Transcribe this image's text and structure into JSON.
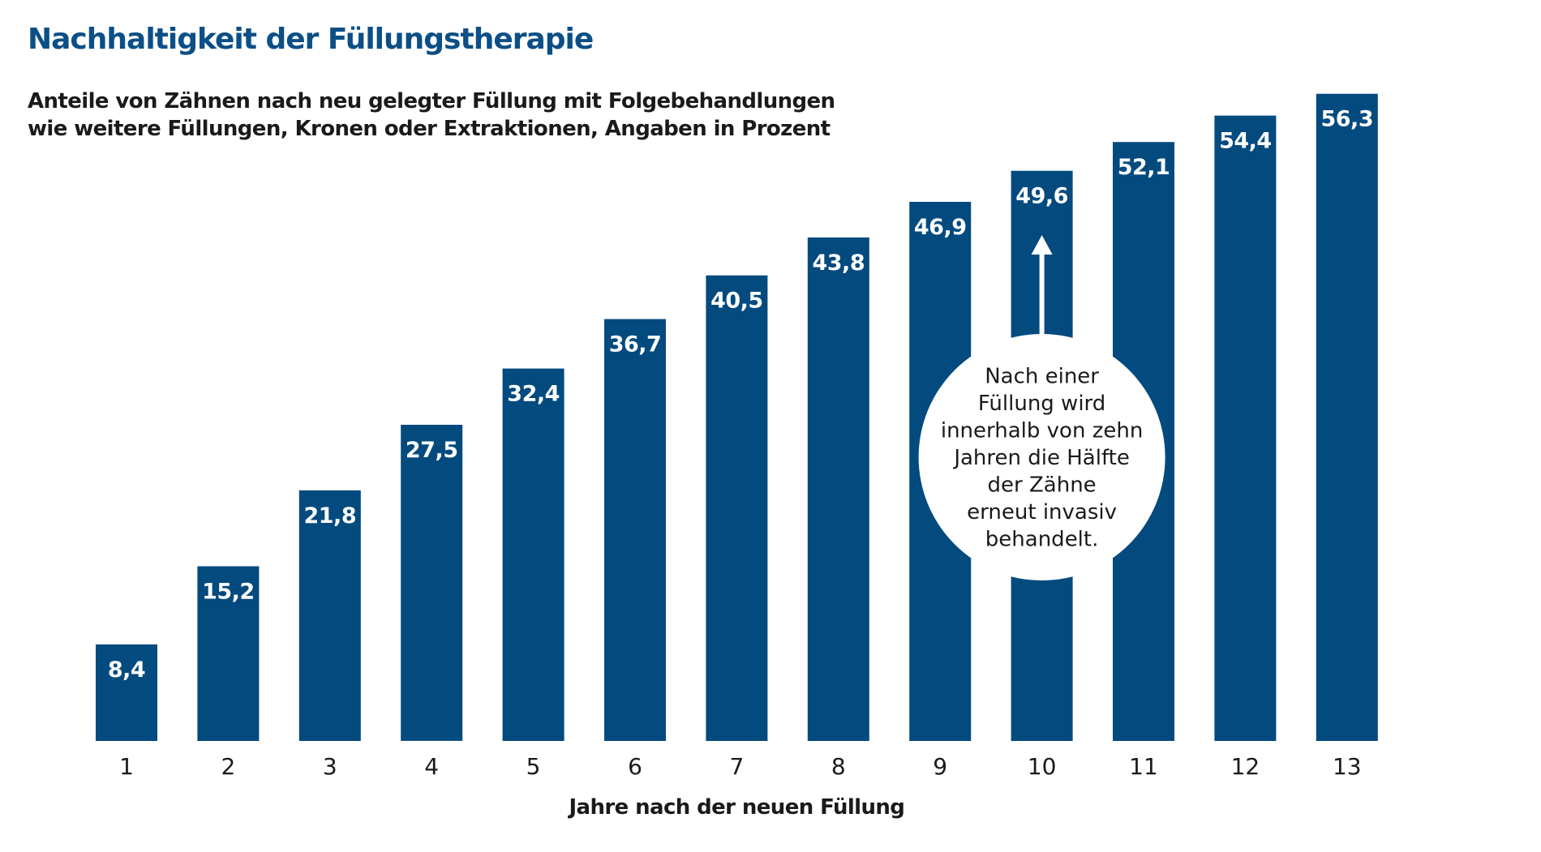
{
  "chart_data": {
    "type": "bar",
    "title": "Nachhaltigkeit der Füllungstherapie",
    "subtitle_lines": [
      "Anteile von Zähnen nach neu gelegter Füllung mit Folgebehandlungen",
      "wie weitere Füllungen, Kronen oder Extraktionen, Angaben in Prozent"
    ],
    "categories": [
      "1",
      "2",
      "3",
      "4",
      "5",
      "6",
      "7",
      "8",
      "9",
      "10",
      "11",
      "12",
      "13"
    ],
    "values": [
      8.4,
      15.2,
      21.8,
      27.5,
      32.4,
      36.7,
      40.5,
      43.8,
      46.9,
      49.6,
      52.1,
      54.4,
      56.3
    ],
    "value_labels": [
      "8,4",
      "15,2",
      "21,8",
      "27,5",
      "32,4",
      "36,7",
      "40,5",
      "43,8",
      "46,9",
      "49,6",
      "52,1",
      "54,4",
      "56,3"
    ],
    "xlabel": "Jahre nach der neuen Füllung",
    "ylabel": "",
    "ylim": [
      0,
      56.3
    ],
    "grid": false,
    "bar_color": "#034a7f",
    "title_color": "#0b4f86",
    "annotation": {
      "category": "10",
      "lines": [
        "Nach einer",
        "Füllung wird",
        "innerhalb von zehn",
        "Jahren die Hälfte",
        "der Zähne",
        "erneut invasiv",
        "behandelt."
      ]
    }
  }
}
